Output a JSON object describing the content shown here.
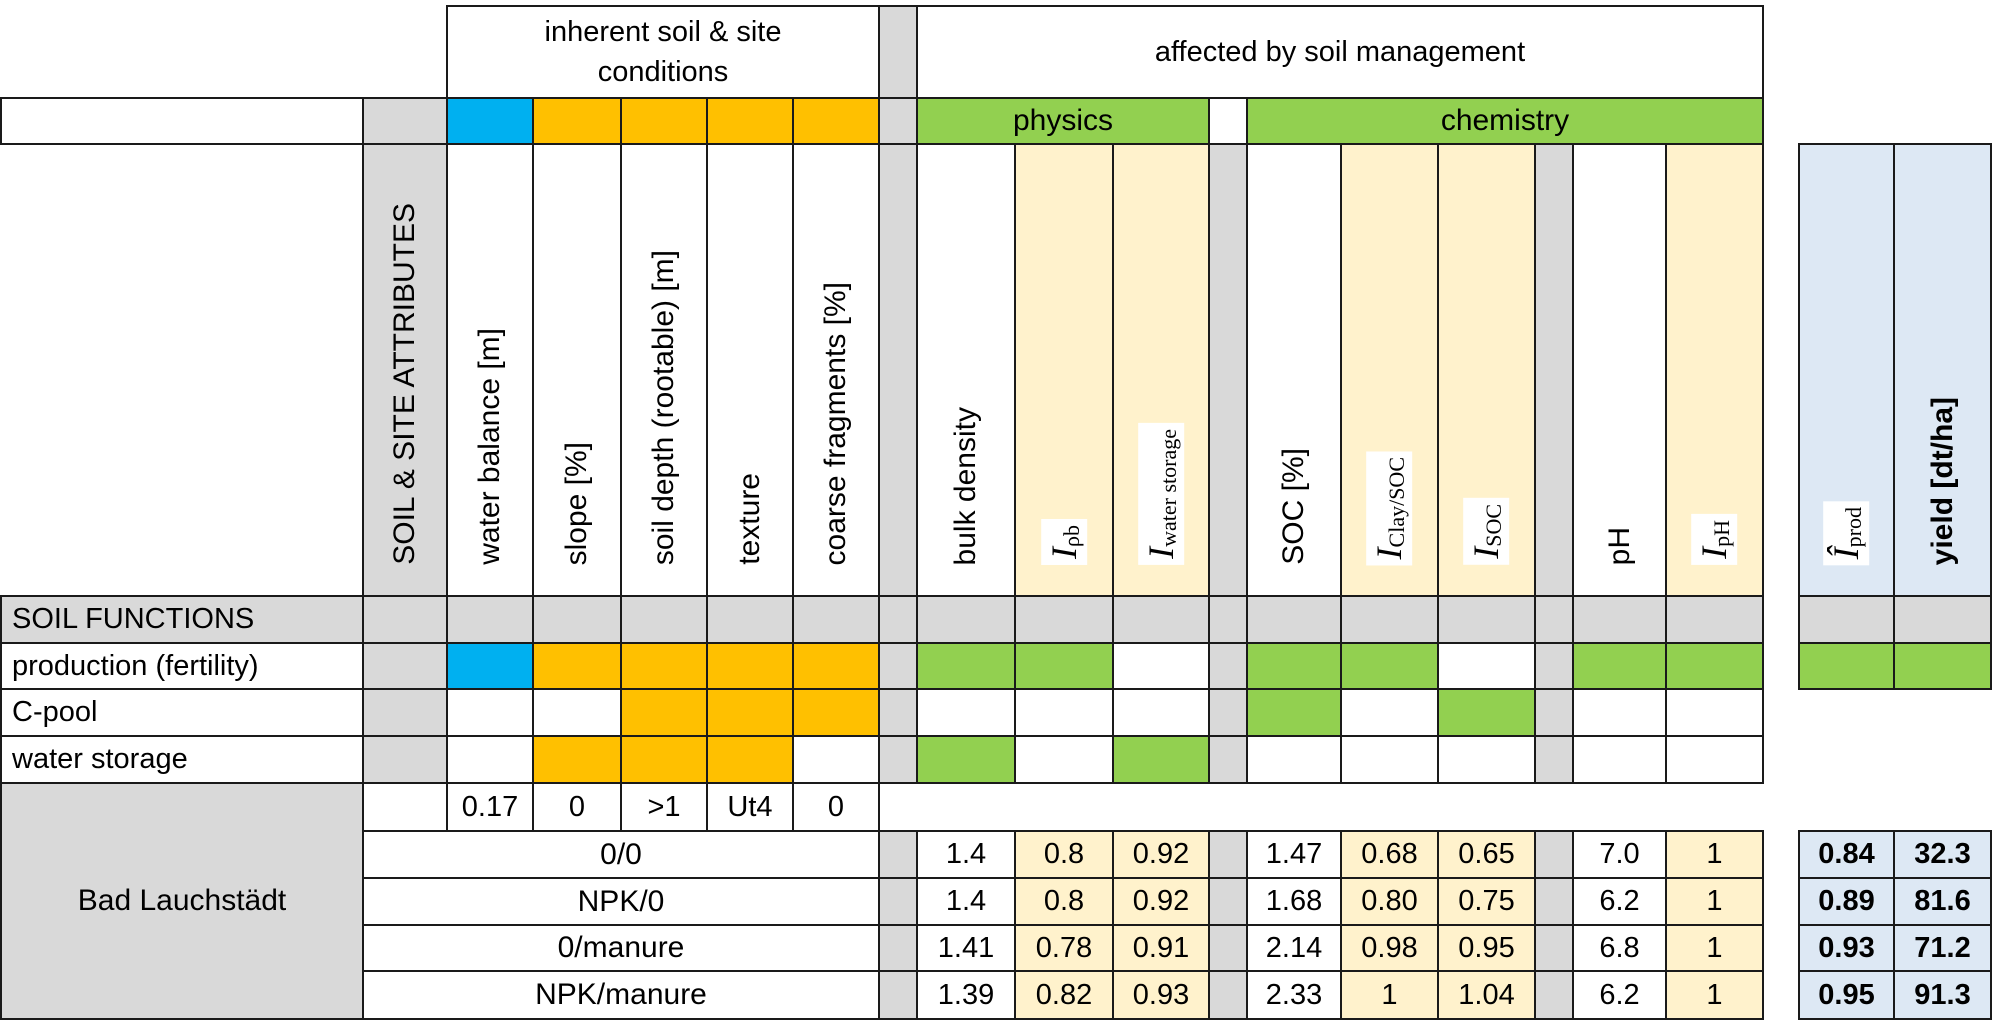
{
  "header": {
    "group_inherent": "inherent soil & site conditions",
    "group_management": "affected by soil management",
    "subgroup_physics": "physics",
    "subgroup_chemistry": "chemistry"
  },
  "colors": {
    "water": "#00b0f0",
    "inherent": "#ffc000",
    "management": "#92d050",
    "index_column": "#fff2cc",
    "result_column": "#dde8f4",
    "separator": "#d9d9d9"
  },
  "columns": {
    "soil_site_attributes": "SOIL & SITE ATTRIBUTES",
    "water_balance": "water balance [m]",
    "slope": "slope [%]",
    "soil_depth": "soil depth (rootable) [m]",
    "texture": "texture",
    "coarse_fragments": "coarse fragments [%]",
    "bulk_density": "bulk density",
    "i_rho_b": {
      "symbol": "I",
      "sub": "ρb"
    },
    "i_water_storage": {
      "symbol": "I",
      "sub": "water storage"
    },
    "soc": "SOC [%]",
    "i_clay_soc": {
      "symbol": "I",
      "sub": "Clay/SOC"
    },
    "i_soc": {
      "symbol": "I",
      "sub": "SOC"
    },
    "ph": "pH",
    "i_ph": {
      "symbol": "I",
      "sub": "pH"
    },
    "i_prod_hat": {
      "symbol": "Î",
      "sub": "prod"
    },
    "yield": "yield [dt/ha]"
  },
  "soil_functions": {
    "title": "SOIL FUNCTIONS",
    "rows": [
      {
        "label": "production (fertility)",
        "inherent": [
          "blue",
          "orange",
          "orange",
          "orange",
          "orange"
        ],
        "physics": [
          "green",
          "green",
          "white"
        ],
        "chemistry": [
          "green",
          "green",
          "white"
        ],
        "ph": [
          "green",
          "green"
        ],
        "result": [
          "green",
          "green"
        ]
      },
      {
        "label": "C-pool",
        "inherent": [
          "white",
          "white",
          "orange",
          "orange",
          "orange"
        ],
        "physics": [
          "white",
          "white",
          "white"
        ],
        "chemistry": [
          "green",
          "white",
          "green"
        ],
        "ph": [
          "white",
          "white"
        ],
        "result": null
      },
      {
        "label": "water storage",
        "inherent": [
          "white",
          "orange",
          "orange",
          "orange",
          "white"
        ],
        "physics": [
          "green",
          "white",
          "green"
        ],
        "chemistry": [
          "white",
          "white",
          "white"
        ],
        "ph": [
          "white",
          "white"
        ],
        "result": null
      }
    ]
  },
  "site": {
    "name": "Bad Lauchstädt",
    "inherent_values": [
      "0.17",
      "0",
      ">1",
      "Ut4",
      "0"
    ],
    "treatments": [
      {
        "name": "0/0",
        "bulk_density": "1.4",
        "i_rho_b": "0.8",
        "i_water_storage": "0.92",
        "soc": "1.47",
        "i_clay_soc": "0.68",
        "i_soc": "0.65",
        "ph": "7.0",
        "i_ph": "1",
        "i_prod": "0.84",
        "yield": "32.3"
      },
      {
        "name": "NPK/0",
        "bulk_density": "1.4",
        "i_rho_b": "0.8",
        "i_water_storage": "0.92",
        "soc": "1.68",
        "i_clay_soc": "0.80",
        "i_soc": "0.75",
        "ph": "6.2",
        "i_ph": "1",
        "i_prod": "0.89",
        "yield": "81.6"
      },
      {
        "name": "0/manure",
        "bulk_density": "1.41",
        "i_rho_b": "0.78",
        "i_water_storage": "0.91",
        "soc": "2.14",
        "i_clay_soc": "0.98",
        "i_soc": "0.95",
        "ph": "6.8",
        "i_ph": "1",
        "i_prod": "0.93",
        "yield": "71.2"
      },
      {
        "name": "NPK/manure",
        "bulk_density": "1.39",
        "i_rho_b": "0.82",
        "i_water_storage": "0.93",
        "soc": "2.33",
        "i_clay_soc": "1",
        "i_soc": "1.04",
        "ph": "6.2",
        "i_ph": "1",
        "i_prod": "0.95",
        "yield": "91.3"
      }
    ]
  }
}
